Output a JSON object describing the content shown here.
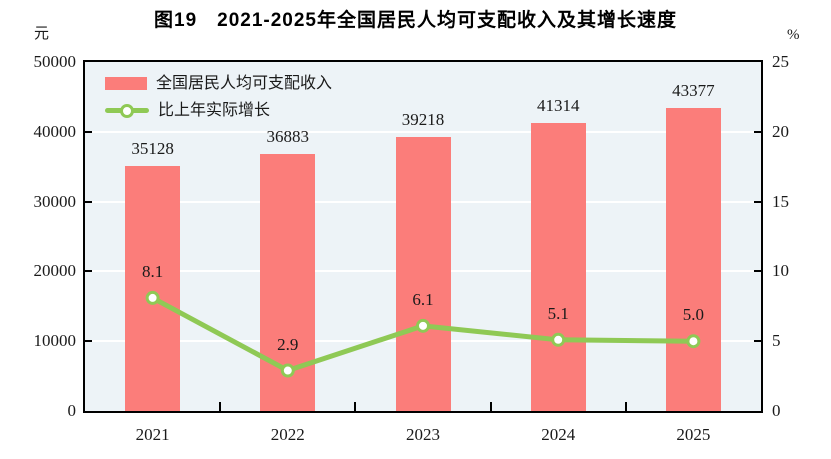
{
  "title": "图19　2021-2025年全国居民人均可支配收入及其增长速度",
  "colors": {
    "bar": "#FB7D7A",
    "line": "#8FC955",
    "marker_fill": "#FFFFFF",
    "plot_bg": "#EDF3F7",
    "grid": "#FFFFFF",
    "axis": "#000000",
    "text": "#1A1A1A"
  },
  "left_axis": {
    "unit": "元",
    "ticks": [
      "50000",
      "40000",
      "30000",
      "20000",
      "10000",
      "0"
    ],
    "max": 50000
  },
  "right_axis": {
    "unit": "%",
    "ticks": [
      "25",
      "20",
      "15",
      "10",
      "5",
      "0"
    ],
    "max": 25
  },
  "legend": [
    {
      "label": "全国居民人均可支配收入",
      "type": "bar",
      "color": "#FB7D7A"
    },
    {
      "label": "比上年实际增长",
      "type": "line",
      "color": "#8FC955"
    }
  ],
  "chart_data": {
    "type": "bar+line combo",
    "title": "图19　2021-2025年全国居民人均可支配收入及其增长速度",
    "categories": [
      "2021",
      "2022",
      "2023",
      "2024",
      "2025"
    ],
    "series": [
      {
        "name": "全国居民人均可支配收入",
        "type": "bar",
        "axis": "left",
        "values": [
          35128,
          36883,
          39218,
          41314,
          43377
        ],
        "labels": [
          "35128",
          "36883",
          "39218",
          "41314",
          "43377"
        ],
        "color": "#FB7D7A"
      },
      {
        "name": "比上年实际增长",
        "type": "line",
        "axis": "right",
        "values": [
          8.1,
          2.9,
          6.1,
          5.1,
          5.0
        ],
        "labels": [
          "8.1",
          "2.9",
          "6.1",
          "5.1",
          "5.0"
        ],
        "color": "#8FC955",
        "marker": "open-circle"
      }
    ],
    "left_ylabel": "元",
    "right_ylabel": "%",
    "left_ylim": [
      0,
      50000
    ],
    "right_ylim": [
      0,
      25
    ],
    "grid": "horizontal white gridlines every 10000 (left) / 5 (right)",
    "legend_position": "top-left inside plot"
  }
}
